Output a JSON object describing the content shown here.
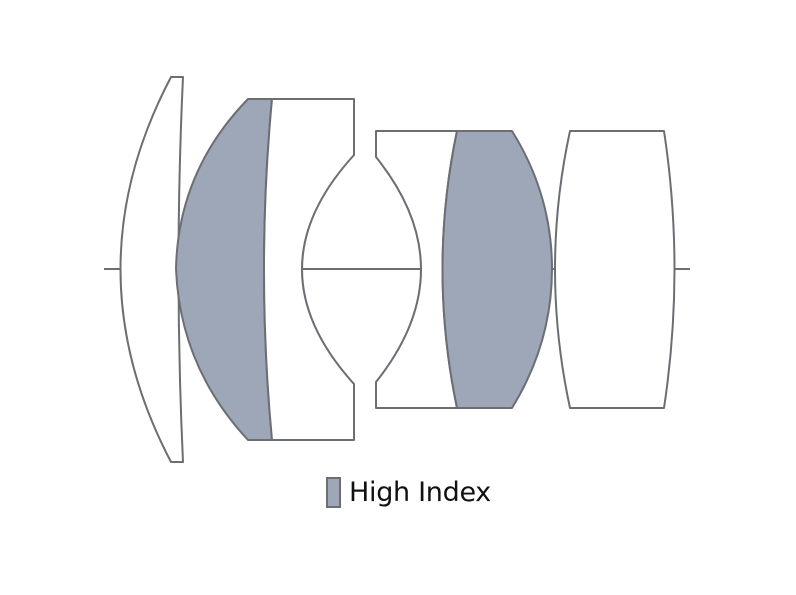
{
  "colors": {
    "high_index_fill": "#9da7b7",
    "outline": "#6b6e73",
    "plain_fill": "#ffffff"
  },
  "elements": [
    {
      "name": "lens-element-1",
      "material": "standard"
    },
    {
      "name": "lens-element-2",
      "material": "high-index"
    },
    {
      "name": "lens-element-3",
      "material": "standard"
    },
    {
      "name": "lens-element-4",
      "material": "standard"
    },
    {
      "name": "lens-element-5",
      "material": "high-index"
    },
    {
      "name": "lens-element-6",
      "material": "standard"
    }
  ],
  "legend": {
    "label": "High Index"
  }
}
